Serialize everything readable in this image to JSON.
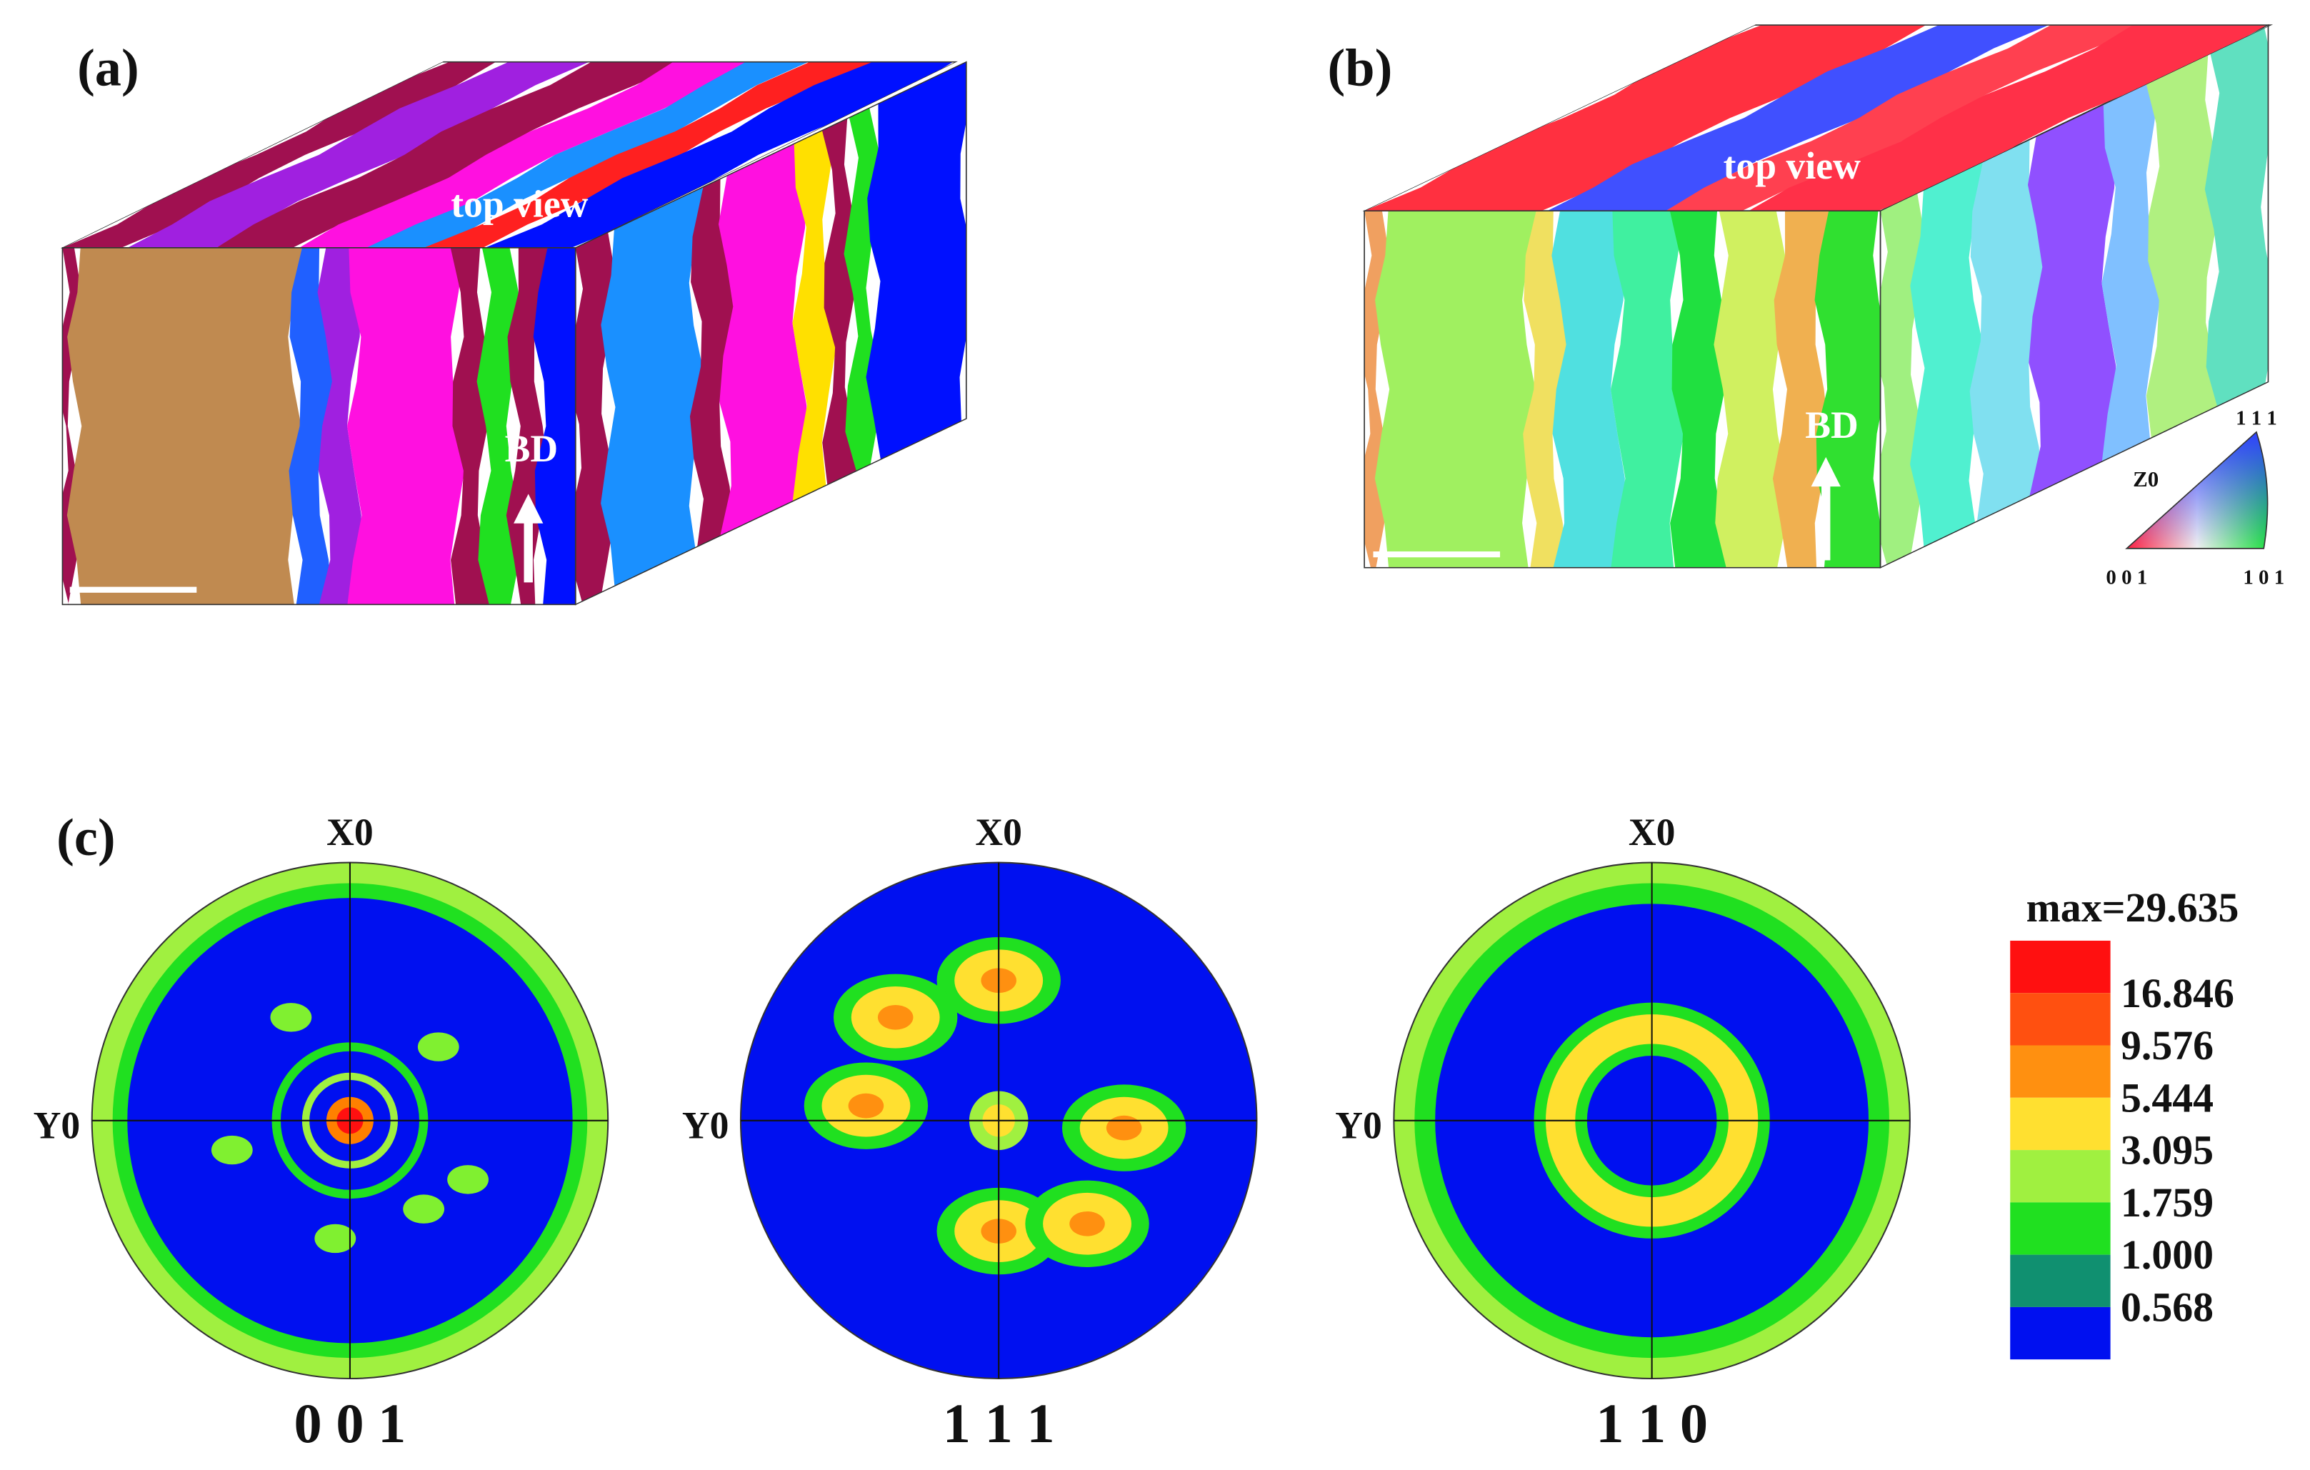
{
  "panels": [
    {
      "label": "(a)",
      "annotations": [
        "top view",
        "BD"
      ]
    },
    {
      "label": "(b)",
      "annotations": [
        "top view",
        "BD"
      ],
      "ipf_key": {
        "axis": "Z0",
        "corners": [
          "1 1 1",
          "0 0 1",
          "1 0 1"
        ]
      }
    },
    {
      "label": "(c)",
      "pole_figures": [
        {
          "title": "0 0 1",
          "axes": [
            "X0",
            "Y0"
          ]
        },
        {
          "title": "1 1 1",
          "axes": [
            "X0",
            "Y0"
          ]
        },
        {
          "title": "1 1 0",
          "axes": [
            "X0",
            "Y0"
          ]
        }
      ],
      "legend": {
        "max": "max=29.635",
        "levels": [
          "16.846",
          "9.576",
          "5.444",
          "3.095",
          "1.759",
          "1.000",
          "0.568"
        ]
      }
    }
  ]
}
